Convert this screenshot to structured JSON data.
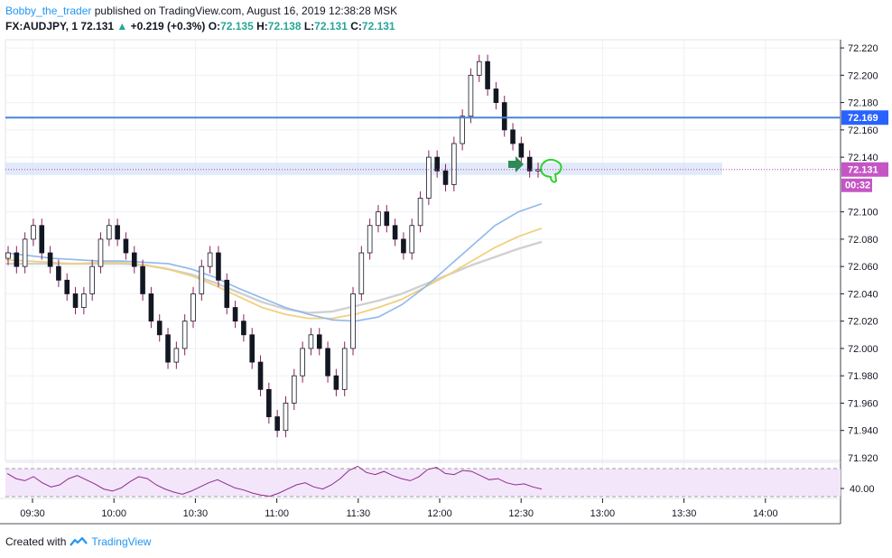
{
  "header": {
    "author": "Bobby_the_trader",
    "published_text": "published on TradingView.com, August 16, 2019 12:38:28 MSK",
    "symbol": "FX:AUDJPY, 1",
    "last": "72.131",
    "change": "+0.219 (+0.3%)",
    "o_label": "O:",
    "o_value": "72.135",
    "h_label": "H:",
    "h_value": "72.138",
    "l_label": "L:",
    "l_value": "72.131",
    "c_label": "C:",
    "c_value": "72.131"
  },
  "footer": {
    "created_with": "Created with",
    "brand": "TradingView"
  },
  "colors": {
    "candle_up": "#ffffff",
    "candle_down": "#131722",
    "wick": "#8e1e5e",
    "resistance": "#4a86d8",
    "zone": "#d6e3f6",
    "price_line": "#c03fc0",
    "sma_blue": "#90b8ec",
    "sma_yellow": "#f0d080",
    "sma_grey": "#d0d0d0",
    "rsi": "#8e2b8e",
    "rsi_band": "#f3e6fa",
    "badge_blue": "#2962ff",
    "badge_purple": "#c555c5"
  },
  "chart_data": {
    "type": "candlestick",
    "x_ticks": [
      "09:30",
      "10:00",
      "10:30",
      "11:00",
      "11:30",
      "12:00",
      "12:30",
      "13:00",
      "13:30",
      "14:00"
    ],
    "y_ticks": [
      "72.220",
      "72.200",
      "72.180",
      "72.160",
      "72.140",
      "72.100",
      "72.080",
      "72.060",
      "72.040",
      "72.020",
      "72.000",
      "71.980",
      "71.960",
      "71.940"
    ],
    "y_tick_partial": "71.920",
    "ylim": [
      71.918,
      72.226
    ],
    "horizontal_line": {
      "value": 72.169,
      "label": "72.169"
    },
    "current_price": {
      "value": 72.131,
      "label": "72.131",
      "countdown": "00:32"
    },
    "zone": [
      72.127,
      72.136
    ],
    "close_series": [
      72.07,
      72.06,
      72.08,
      72.09,
      72.07,
      72.06,
      72.05,
      72.04,
      72.03,
      72.04,
      72.06,
      72.08,
      72.09,
      72.08,
      72.07,
      72.06,
      72.04,
      72.02,
      72.01,
      71.99,
      72.0,
      72.02,
      72.04,
      72.06,
      72.07,
      72.05,
      72.03,
      72.02,
      72.01,
      71.99,
      71.97,
      71.95,
      71.94,
      71.96,
      71.98,
      72.0,
      72.01,
      72.0,
      71.98,
      71.97,
      72.0,
      72.04,
      72.07,
      72.09,
      72.1,
      72.09,
      72.08,
      72.07,
      72.09,
      72.11,
      72.14,
      72.13,
      72.12,
      72.15,
      72.17,
      72.2,
      72.21,
      72.19,
      72.18,
      72.16,
      72.15,
      72.14,
      72.13,
      72.131
    ],
    "sma_blue": [
      72.07,
      72.068,
      72.066,
      72.065,
      72.064,
      72.064,
      72.063,
      72.062,
      72.058,
      72.052,
      72.044,
      72.037,
      72.03,
      72.025,
      72.021,
      72.02,
      72.023,
      72.032,
      72.045,
      72.06,
      72.075,
      72.09,
      72.1,
      72.106
    ],
    "sma_yellow": [
      72.065,
      72.064,
      72.063,
      72.062,
      72.063,
      72.063,
      72.061,
      72.058,
      72.053,
      72.046,
      72.038,
      72.03,
      72.025,
      72.022,
      72.022,
      72.025,
      72.03,
      72.036,
      72.045,
      72.054,
      72.064,
      72.074,
      72.082,
      72.088
    ],
    "sma_grey": [
      72.062,
      72.062,
      72.062,
      72.062,
      72.062,
      72.062,
      72.061,
      72.058,
      72.054,
      72.048,
      72.041,
      72.034,
      72.029,
      72.026,
      72.027,
      72.031,
      72.035,
      72.04,
      72.047,
      72.054,
      72.061,
      72.067,
      72.073,
      72.078
    ],
    "rsi": {
      "label": "40.00",
      "values": [
        55,
        50,
        48,
        52,
        46,
        42,
        44,
        50,
        53,
        49,
        45,
        40,
        38,
        41,
        47,
        52,
        50,
        44,
        40,
        37,
        35,
        38,
        42,
        46,
        49,
        45,
        41,
        39,
        36,
        34,
        33,
        36,
        40,
        44,
        46,
        42,
        40,
        44,
        50,
        58,
        62,
        56,
        54,
        57,
        53,
        50,
        48,
        52,
        59,
        61,
        55,
        54,
        58,
        57,
        53,
        49,
        50,
        46,
        44,
        45,
        42,
        40
      ]
    }
  }
}
